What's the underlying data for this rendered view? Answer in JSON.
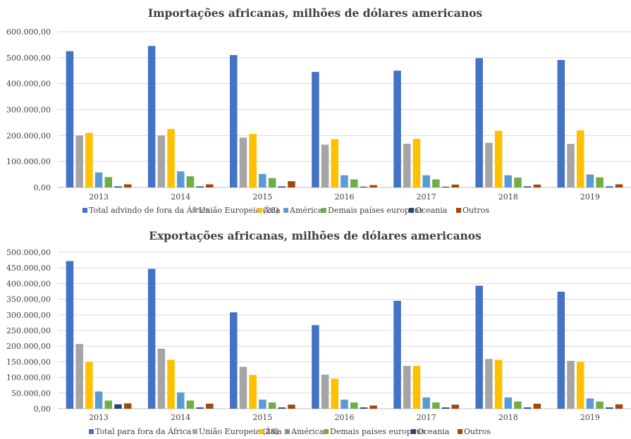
{
  "chart_data": [
    {
      "type": "bar",
      "title": "Importações africanas, milhões de dólares americanos",
      "categories": [
        "2013",
        "2014",
        "2015",
        "2016",
        "2017",
        "2018",
        "2019"
      ],
      "ylim": [
        0,
        600000
      ],
      "yticks": [
        0,
        100000,
        200000,
        300000,
        400000,
        500000,
        600000
      ],
      "ytick_labels": [
        "0,00",
        "100.000,00",
        "200.000,00",
        "300.000,00",
        "400.000,00",
        "500.000,00",
        "600.000,00"
      ],
      "grid": true,
      "legend_position": "bottom",
      "series": [
        {
          "name": "Total advindo de fora da África",
          "color": "#4472c4",
          "values": [
            525000,
            545000,
            510000,
            445000,
            450000,
            498000,
            491000
          ]
        },
        {
          "name": "União Europeia (28)",
          "color": "#a5a5a5",
          "values": [
            200000,
            200000,
            192000,
            165000,
            168000,
            172000,
            168000
          ]
        },
        {
          "name": "Ásia",
          "color": "#ffc000",
          "values": [
            210000,
            225000,
            206000,
            186000,
            187000,
            218000,
            220000
          ]
        },
        {
          "name": "América",
          "color": "#5b9bd5",
          "values": [
            58000,
            62000,
            52000,
            47000,
            47000,
            47000,
            50000
          ]
        },
        {
          "name": "Demais países europeus",
          "color": "#70ad47",
          "values": [
            40000,
            43000,
            36000,
            31000,
            31000,
            38000,
            39000
          ]
        },
        {
          "name": "Oceania",
          "color": "#264478",
          "values": [
            4000,
            4000,
            4000,
            3000,
            3000,
            4000,
            4000
          ]
        },
        {
          "name": "Outros",
          "color": "#9e480e",
          "values": [
            12000,
            12000,
            24000,
            9000,
            11000,
            11000,
            12000
          ]
        }
      ]
    },
    {
      "type": "bar",
      "title": "Exportações africanas, milhões de dólares americanos",
      "categories": [
        "2013",
        "2014",
        "2015",
        "2016",
        "2017",
        "2018",
        "2019"
      ],
      "ylim": [
        0,
        500000
      ],
      "yticks": [
        0,
        50000,
        100000,
        150000,
        200000,
        250000,
        300000,
        350000,
        400000,
        450000,
        500000
      ],
      "ytick_labels": [
        "0,00",
        "50.000,00",
        "100.000,00",
        "150.000,00",
        "200.000,00",
        "250.000,00",
        "300.000,00",
        "350.000,00",
        "400.000,00",
        "450.000,00",
        "500.000,00"
      ],
      "grid": true,
      "legend_position": "bottom",
      "series": [
        {
          "name": "Total para fora da África",
          "color": "#4472c4",
          "values": [
            472000,
            447000,
            308000,
            267000,
            345000,
            393000,
            374000
          ]
        },
        {
          "name": "União Europeia (28)",
          "color": "#a5a5a5",
          "values": [
            207000,
            192000,
            134000,
            109000,
            137000,
            159000,
            153000
          ]
        },
        {
          "name": "Ásia",
          "color": "#ffc000",
          "values": [
            149000,
            156000,
            108000,
            96000,
            137000,
            156000,
            150000
          ]
        },
        {
          "name": "América",
          "color": "#5b9bd5",
          "values": [
            55000,
            52000,
            29000,
            29000,
            36000,
            36000,
            33000
          ]
        },
        {
          "name": "Demais países europeus",
          "color": "#70ad47",
          "values": [
            26000,
            26000,
            20000,
            20000,
            20000,
            23000,
            23000
          ]
        },
        {
          "name": "Oceania",
          "color": "#264478",
          "values": [
            14000,
            4000,
            4000,
            4000,
            4000,
            4000,
            4000
          ]
        },
        {
          "name": "Outros",
          "color": "#9e480e",
          "values": [
            17000,
            16000,
            13000,
            10000,
            13000,
            16000,
            14000
          ]
        }
      ]
    }
  ]
}
